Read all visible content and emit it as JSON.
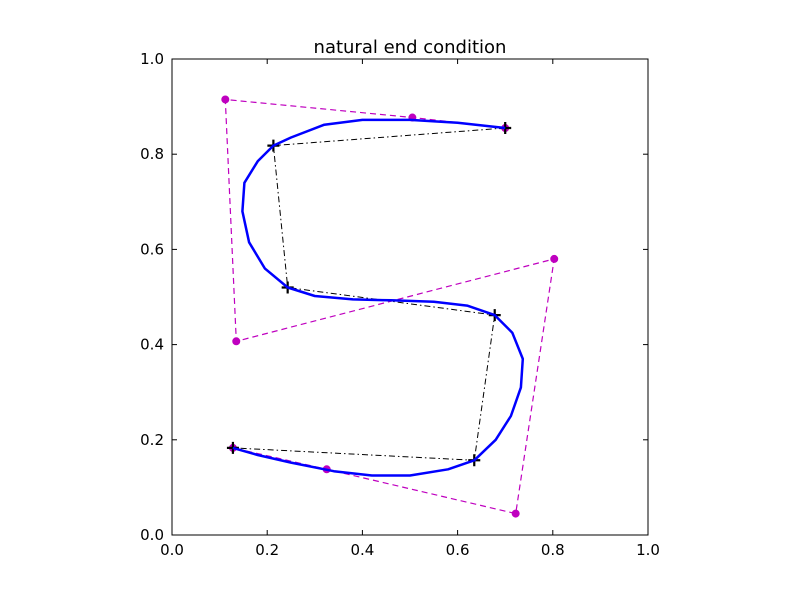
{
  "chart_data": {
    "type": "line",
    "title": "natural end condition",
    "xlabel": "",
    "ylabel": "",
    "xlim": [
      0.0,
      1.0
    ],
    "ylim": [
      0.0,
      1.0
    ],
    "xticks": [
      "0.0",
      "0.2",
      "0.4",
      "0.6",
      "0.8",
      "1.0"
    ],
    "yticks": [
      "0.0",
      "0.2",
      "0.4",
      "0.6",
      "0.8",
      "1.0"
    ],
    "grid": false,
    "legend": "none",
    "series": [
      {
        "role": "control-polygon",
        "style": "dashed",
        "marker": "circle",
        "color": "#bf00bf",
        "points": [
          [
            0.7,
            0.855
          ],
          [
            0.505,
            0.877
          ],
          [
            0.112,
            0.915
          ],
          [
            0.135,
            0.407
          ],
          [
            0.803,
            0.58
          ],
          [
            0.722,
            0.045
          ],
          [
            0.325,
            0.138
          ],
          [
            0.128,
            0.183
          ]
        ]
      },
      {
        "role": "interpolation-points",
        "style": "dash-dot",
        "marker": "plus",
        "color": "#000000",
        "points": [
          [
            0.7,
            0.855
          ],
          [
            0.213,
            0.818
          ],
          [
            0.243,
            0.52
          ],
          [
            0.678,
            0.462
          ],
          [
            0.635,
            0.157
          ],
          [
            0.128,
            0.183
          ]
        ]
      },
      {
        "role": "spline-curve",
        "style": "solid",
        "marker": "none",
        "color": "#0000ff",
        "points": [
          [
            0.7,
            0.855
          ],
          [
            0.6,
            0.866
          ],
          [
            0.5,
            0.872
          ],
          [
            0.4,
            0.872
          ],
          [
            0.32,
            0.862
          ],
          [
            0.25,
            0.835
          ],
          [
            0.213,
            0.818
          ],
          [
            0.18,
            0.785
          ],
          [
            0.152,
            0.74
          ],
          [
            0.148,
            0.68
          ],
          [
            0.162,
            0.615
          ],
          [
            0.195,
            0.56
          ],
          [
            0.243,
            0.52
          ],
          [
            0.3,
            0.502
          ],
          [
            0.38,
            0.495
          ],
          [
            0.46,
            0.493
          ],
          [
            0.55,
            0.49
          ],
          [
            0.62,
            0.482
          ],
          [
            0.678,
            0.462
          ],
          [
            0.715,
            0.425
          ],
          [
            0.737,
            0.37
          ],
          [
            0.733,
            0.31
          ],
          [
            0.712,
            0.25
          ],
          [
            0.68,
            0.2
          ],
          [
            0.635,
            0.157
          ],
          [
            0.58,
            0.138
          ],
          [
            0.5,
            0.125
          ],
          [
            0.42,
            0.125
          ],
          [
            0.34,
            0.134
          ],
          [
            0.25,
            0.152
          ],
          [
            0.18,
            0.168
          ],
          [
            0.128,
            0.183
          ]
        ]
      }
    ]
  }
}
